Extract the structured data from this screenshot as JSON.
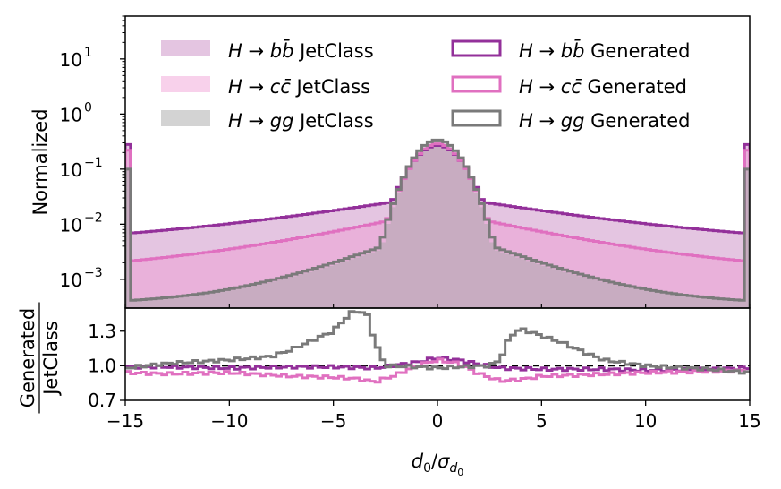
{
  "chart_data": [
    {
      "type": "area",
      "panel": "main",
      "ylabel": "Normalized",
      "yscale": "log",
      "xlim": [
        -15,
        15
      ],
      "ylim": [
        0.0003,
        60
      ],
      "y_ticks": [
        {
          "value": 0.001,
          "label_base": "10",
          "label_exp": "−3"
        },
        {
          "value": 0.01,
          "label_base": "10",
          "label_exp": "−2"
        },
        {
          "value": 0.1,
          "label_base": "10",
          "label_exp": "−1"
        },
        {
          "value": 1,
          "label_base": "10",
          "label_exp": "0"
        },
        {
          "value": 10,
          "label_base": "10",
          "label_exp": "1"
        }
      ],
      "series": [
        {
          "name": "H → bb̄ JetClass",
          "kind": "filled",
          "color": "#b35aa9",
          "opacity": 0.35,
          "model": {
            "peak": 0.26,
            "sigma": 1.0,
            "tail_edge": 0.0038,
            "tail_mid": 0.022,
            "tail_decay": 6.5,
            "edge_spike": 0.28
          }
        },
        {
          "name": "H → cc̄ JetClass",
          "kind": "filled",
          "color": "#ef9ad3",
          "opacity": 0.45,
          "model": {
            "peak": 0.3,
            "sigma": 0.95,
            "tail_edge": 0.0013,
            "tail_mid": 0.011,
            "tail_decay": 5.0,
            "edge_spike": 0.22
          }
        },
        {
          "name": "H → gg JetClass",
          "kind": "filled",
          "color": "#a8a8a8",
          "opacity": 0.5,
          "model": {
            "peak": 0.33,
            "sigma": 0.9,
            "tail_edge": 0.00035,
            "tail_mid": 0.004,
            "tail_decay": 3.0,
            "edge_spike": 0.1
          }
        },
        {
          "name": "H → bb̄ Generated",
          "kind": "step",
          "color": "#93309a",
          "model": {
            "peak": 0.27,
            "sigma": 1.0,
            "tail_edge": 0.0038,
            "tail_mid": 0.022,
            "tail_decay": 6.5,
            "edge_spike": 0.28
          }
        },
        {
          "name": "H → cc̄ Generated",
          "kind": "step",
          "color": "#e070c0",
          "model": {
            "peak": 0.29,
            "sigma": 0.95,
            "tail_edge": 0.0013,
            "tail_mid": 0.011,
            "tail_decay": 5.0,
            "edge_spike": 0.22
          }
        },
        {
          "name": "H → gg Generated",
          "kind": "step",
          "color": "#7a7a7a",
          "model": {
            "peak": 0.34,
            "sigma": 0.92,
            "tail_edge": 0.00035,
            "tail_mid": 0.0045,
            "tail_decay": 3.0,
            "edge_spike": 0.1
          }
        }
      ],
      "legend": {
        "placement": "top",
        "entries": [
          {
            "kind": "filled",
            "color": "#b35aa9",
            "opacity": 0.35,
            "math": "H → bb̄",
            "suffix": "JetClass"
          },
          {
            "kind": "filled",
            "color": "#ef9ad3",
            "opacity": 0.45,
            "math": "H → cc̄",
            "suffix": "JetClass"
          },
          {
            "kind": "filled",
            "color": "#a8a8a8",
            "opacity": 0.5,
            "math": "H → gg",
            "suffix": "JetClass"
          },
          {
            "kind": "step",
            "color": "#93309a",
            "math": "H → bb̄",
            "suffix": "Generated"
          },
          {
            "kind": "step",
            "color": "#e070c0",
            "math": "H → cc̄",
            "suffix": "Generated"
          },
          {
            "kind": "step",
            "color": "#7a7a7a",
            "math": "H → gg",
            "suffix": "Generated"
          }
        ]
      }
    },
    {
      "type": "line",
      "panel": "ratio",
      "ylabel_numerator": "Generated",
      "ylabel_denominator": "JetClass",
      "xlabel": "d0/σd0",
      "xlim": [
        -15,
        15
      ],
      "ylim": [
        0.7,
        1.5
      ],
      "x_ticks": [
        -15,
        -10,
        -5,
        0,
        5,
        10,
        15
      ],
      "x_tick_labels": [
        "−15",
        "−10",
        "−5",
        "0",
        "5",
        "10",
        "15"
      ],
      "y_ticks": [
        0.7,
        1.0,
        1.3
      ],
      "y_tick_labels": [
        "0.7",
        "1.0",
        "1.3"
      ],
      "reference_line": 1.0,
      "series": [
        {
          "name": "H → bb̄",
          "color": "#93309a",
          "points": [
            [
              -15,
              0.99
            ],
            [
              -13,
              0.99
            ],
            [
              -10,
              0.98
            ],
            [
              -7,
              0.99
            ],
            [
              -5,
              0.99
            ],
            [
              -3,
              0.98
            ],
            [
              -1,
              1.03
            ],
            [
              0,
              1.07
            ],
            [
              1,
              1.05
            ],
            [
              3,
              0.98
            ],
            [
              5,
              0.97
            ],
            [
              8,
              0.97
            ],
            [
              10,
              0.96
            ],
            [
              13,
              0.97
            ],
            [
              15,
              0.98
            ]
          ]
        },
        {
          "name": "H → cc̄",
          "color": "#e070c0",
          "points": [
            [
              -15,
              0.94
            ],
            [
              -13,
              0.93
            ],
            [
              -10,
              0.94
            ],
            [
              -7,
              0.91
            ],
            [
              -5,
              0.9
            ],
            [
              -4,
              0.89
            ],
            [
              -3,
              0.86
            ],
            [
              -2,
              0.92
            ],
            [
              -1,
              1.0
            ],
            [
              0,
              1.05
            ],
            [
              1,
              1.02
            ],
            [
              2,
              0.93
            ],
            [
              3,
              0.87
            ],
            [
              4,
              0.88
            ],
            [
              5,
              0.91
            ],
            [
              7,
              0.92
            ],
            [
              10,
              0.94
            ],
            [
              13,
              0.95
            ],
            [
              15,
              0.96
            ]
          ]
        },
        {
          "name": "H → gg",
          "color": "#7a7a7a",
          "points": [
            [
              -15,
              0.98
            ],
            [
              -13,
              1.02
            ],
            [
              -10,
              1.05
            ],
            [
              -8,
              1.08
            ],
            [
              -7,
              1.14
            ],
            [
              -6,
              1.22
            ],
            [
              -5,
              1.3
            ],
            [
              -4.6,
              1.38
            ],
            [
              -4,
              1.48
            ],
            [
              -3.4,
              1.45
            ],
            [
              -3,
              1.2
            ],
            [
              -2.5,
              1.0
            ],
            [
              -1,
              0.99
            ],
            [
              0,
              0.98
            ],
            [
              1,
              0.99
            ],
            [
              2.5,
              1.0
            ],
            [
              3,
              1.05
            ],
            [
              3.5,
              1.26
            ],
            [
              4,
              1.32
            ],
            [
              5,
              1.26
            ],
            [
              6,
              1.2
            ],
            [
              7,
              1.12
            ],
            [
              8,
              1.05
            ],
            [
              10,
              1.0
            ],
            [
              13,
              0.97
            ],
            [
              15,
              0.94
            ]
          ]
        }
      ]
    }
  ]
}
